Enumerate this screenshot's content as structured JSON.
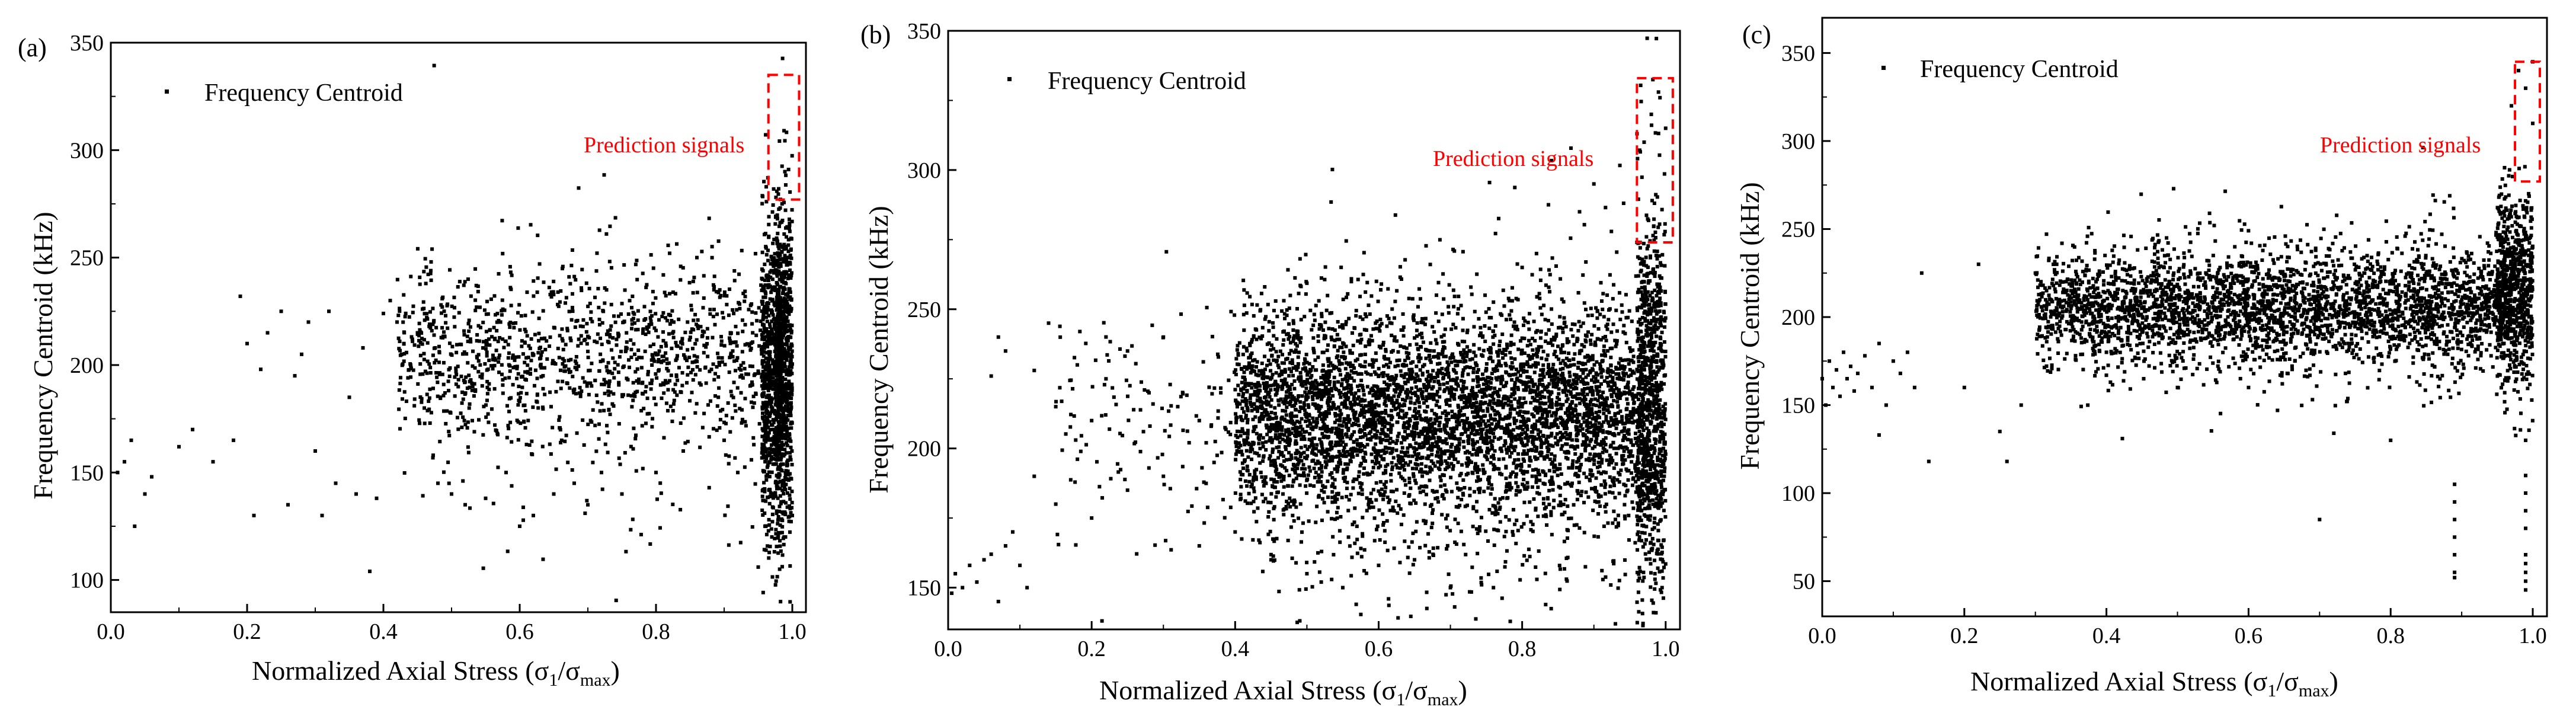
{
  "figure": {
    "legend_label": "Frequency Centroid",
    "annotation": "Prediction signals",
    "colors": {
      "points": "#000000",
      "annotation": "#ff0000",
      "axis": "#000000"
    }
  },
  "chart_data": [
    {
      "type": "scatter",
      "panel_label": "(a)",
      "title": "",
      "xlabel": "Normalized Axial Stress (σ1/σmax)",
      "ylabel": "Frequency Centroid (kHz)",
      "xlim": [
        0.0,
        1.02
      ],
      "ylim": [
        85,
        350
      ],
      "xticks": [
        0.0,
        0.2,
        0.4,
        0.6,
        0.8,
        1.0
      ],
      "xtick_labels": [
        "0.0",
        "0.2",
        "0.4",
        "0.6",
        "0.8",
        "1.0"
      ],
      "yticks": [
        100,
        150,
        200,
        250,
        300,
        350
      ],
      "ytick_labels": [
        "100",
        "150",
        "200",
        "250",
        "300",
        "350"
      ],
      "legend": {
        "entries": [
          "Frequency Centroid"
        ],
        "position": "top-left"
      },
      "annotation": {
        "text": "Prediction signals",
        "x_range": [
          0.965,
          1.01
        ],
        "y_range": [
          277,
          335
        ]
      },
      "series": [
        {
          "name": "Frequency Centroid",
          "points": [
            [
              0.01,
              150
            ],
            [
              0.02,
              155
            ],
            [
              0.03,
              165
            ],
            [
              0.035,
              125
            ],
            [
              0.05,
              140
            ],
            [
              0.06,
              148
            ],
            [
              0.1,
              162
            ],
            [
              0.12,
              170
            ],
            [
              0.15,
              155
            ],
            [
              0.18,
              165
            ],
            [
              0.19,
              232
            ],
            [
              0.2,
              210
            ],
            [
              0.21,
              130
            ],
            [
              0.22,
              198
            ],
            [
              0.23,
              215
            ],
            [
              0.25,
              225
            ],
            [
              0.26,
              135
            ],
            [
              0.27,
              195
            ],
            [
              0.28,
              205
            ],
            [
              0.29,
              220
            ],
            [
              0.3,
              160
            ],
            [
              0.31,
              130
            ],
            [
              0.32,
              225
            ],
            [
              0.33,
              145
            ],
            [
              0.35,
              185
            ],
            [
              0.36,
              140
            ],
            [
              0.37,
              208
            ],
            [
              0.38,
              104
            ],
            [
              0.39,
              138
            ],
            [
              0.4,
              224
            ],
            [
              0.41,
              230
            ],
            [
              0.42,
              220
            ],
            [
              0.43,
              210
            ],
            [
              0.44,
              200
            ],
            [
              0.45,
              215
            ],
            [
              0.46,
              180
            ],
            [
              0.47,
              248
            ],
            [
              0.48,
              145
            ],
            [
              0.5,
              140
            ],
            [
              0.52,
              135
            ],
            [
              0.55,
              138
            ],
            [
              0.58,
              150
            ],
            [
              0.6,
              125
            ],
            [
              0.62,
              130
            ],
            [
              0.65,
              140
            ],
            [
              0.68,
              145
            ],
            [
              0.7,
              135
            ],
            [
              0.72,
              150
            ],
            [
              0.75,
              140
            ],
            [
              0.8,
              150
            ],
            [
              0.82,
              252
            ],
            [
              0.84,
              160
            ],
            [
              0.86,
              250
            ],
            [
              0.9,
              165
            ],
            [
              0.92,
              150
            ],
            [
              0.95,
              106
            ],
            [
              0.96,
              125
            ],
            [
              0.97,
              120
            ],
            [
              0.98,
              282
            ],
            [
              0.985,
              275
            ],
            [
              0.99,
              120
            ],
            [
              1.0,
              130
            ]
          ],
          "clouds": [
            {
              "x": [
                0.42,
                0.96
              ],
              "y_center": 205,
              "y_spread": 20,
              "count": 1150
            },
            {
              "x": [
                0.45,
                0.95
              ],
              "y_center": 185,
              "y_spread": 45,
              "count": 160
            },
            {
              "x": [
                0.955,
                0.985
              ],
              "y_center": 195,
              "y_spread": 35,
              "count": 700
            },
            {
              "x": [
                0.975,
                1.0
              ],
              "y_center": 200,
              "y_spread": 38,
              "count": 700
            }
          ]
        }
      ]
    },
    {
      "type": "scatter",
      "panel_label": "(b)",
      "title": "",
      "xlabel": "Normalized Axial Stress (σ1/σmax)",
      "ylabel": "Frequency Centroid (kHz)",
      "xlim": [
        0.0,
        1.02
      ],
      "ylim": [
        135,
        350
      ],
      "xticks": [
        0.0,
        0.2,
        0.4,
        0.6,
        0.8,
        1.0
      ],
      "xtick_labels": [
        "0.0",
        "0.2",
        "0.4",
        "0.6",
        "0.8",
        "1.0"
      ],
      "yticks": [
        150,
        200,
        250,
        300,
        350
      ],
      "ytick_labels": [
        "150",
        "200",
        "250",
        "300",
        "350"
      ],
      "legend": {
        "entries": [
          "Frequency Centroid"
        ],
        "position": "top-left"
      },
      "annotation": {
        "text": "Prediction signals",
        "x_range": [
          0.96,
          1.01
        ],
        "y_range": [
          274,
          333
        ]
      },
      "series": [
        {
          "name": "Frequency Centroid",
          "points": [
            [
              0.005,
              148
            ],
            [
              0.01,
              155
            ],
            [
              0.02,
              150
            ],
            [
              0.03,
              158
            ],
            [
              0.04,
              152
            ],
            [
              0.05,
              160
            ],
            [
              0.06,
              162
            ],
            [
              0.07,
              145
            ],
            [
              0.08,
              165
            ],
            [
              0.09,
              170
            ],
            [
              0.1,
              158
            ],
            [
              0.11,
              150
            ],
            [
              0.06,
              226
            ],
            [
              0.07,
              240
            ],
            [
              0.08,
              235
            ],
            [
              0.12,
              228
            ],
            [
              0.14,
              245
            ],
            [
              0.15,
              215
            ],
            [
              0.18,
              230
            ],
            [
              0.2,
              210
            ],
            [
              0.22,
              225
            ],
            [
              0.25,
              235
            ],
            [
              0.28,
              220
            ],
            [
              0.3,
              240
            ],
            [
              0.32,
              215
            ],
            [
              0.35,
              210
            ],
            [
              0.38,
              220
            ],
            [
              0.12,
              190
            ],
            [
              0.15,
              180
            ],
            [
              0.2,
              175
            ],
            [
              0.25,
              185
            ],
            [
              0.3,
              190
            ],
            [
              0.35,
              165
            ],
            [
              0.4,
              170
            ],
            [
              0.45,
              160
            ],
            [
              0.5,
              155
            ],
            [
              0.52,
              152
            ],
            [
              0.55,
              150
            ],
            [
              0.6,
              158
            ],
            [
              0.65,
              160
            ],
            [
              0.7,
              150
            ],
            [
              0.76,
              150
            ],
            [
              0.8,
              265
            ],
            [
              0.82,
              270
            ],
            [
              0.88,
              285
            ],
            [
              0.9,
              295
            ],
            [
              0.93,
              137
            ],
            [
              0.97,
              310
            ],
            [
              0.98,
              320
            ],
            [
              0.99,
              328
            ],
            [
              1.0,
              315
            ],
            [
              0.985,
              155
            ],
            [
              0.995,
              150
            ]
          ],
          "clouds": [
            {
              "x": [
                0.4,
                0.97
              ],
              "y_center": 212,
              "y_spread": 18,
              "count": 4200
            },
            {
              "x": [
                0.45,
                0.95
              ],
              "y_center": 205,
              "y_spread": 35,
              "count": 700
            },
            {
              "x": [
                0.15,
                0.45
              ],
              "y_center": 210,
              "y_spread": 22,
              "count": 170
            },
            {
              "x": [
                0.96,
                1.0
              ],
              "y_center": 215,
              "y_spread": 35,
              "count": 900
            }
          ]
        }
      ]
    },
    {
      "type": "scatter",
      "panel_label": "(c)",
      "title": "",
      "xlabel": "Normalized Axial Stress (σ1/σmax)",
      "ylabel": "Frequency Centroid (kHz)",
      "xlim": [
        0.0,
        1.02
      ],
      "ylim": [
        30,
        370
      ],
      "xticks": [
        0.0,
        0.2,
        0.4,
        0.6,
        0.8,
        1.0
      ],
      "xtick_labels": [
        "0.0",
        "0.2",
        "0.4",
        "0.6",
        "0.8",
        "1.0"
      ],
      "yticks": [
        50,
        100,
        150,
        200,
        250,
        300,
        350
      ],
      "ytick_labels": [
        "50",
        "100",
        "150",
        "200",
        "250",
        "300",
        "350"
      ],
      "legend": {
        "entries": [
          "Frequency Centroid"
        ],
        "position": "top-left"
      },
      "annotation": {
        "text": "Prediction signals",
        "x_range": [
          0.975,
          1.01
        ],
        "y_range": [
          277,
          345
        ]
      },
      "series": [
        {
          "name": "Frequency Centroid",
          "points": [
            [
              0.0,
              165
            ],
            [
              0.005,
              150
            ],
            [
              0.01,
              175
            ],
            [
              0.015,
              160
            ],
            [
              0.02,
              170
            ],
            [
              0.025,
              155
            ],
            [
              0.03,
              180
            ],
            [
              0.035,
              165
            ],
            [
              0.04,
              172
            ],
            [
              0.045,
              158
            ],
            [
              0.05,
              168
            ],
            [
              0.06,
              178
            ],
            [
              0.07,
              160
            ],
            [
              0.08,
              185
            ],
            [
              0.09,
              150
            ],
            [
              0.1,
              175
            ],
            [
              0.11,
              168
            ],
            [
              0.12,
              180
            ],
            [
              0.13,
              160
            ],
            [
              0.14,
              225
            ],
            [
              0.15,
              118
            ],
            [
              0.08,
              133
            ],
            [
              0.2,
              160
            ],
            [
              0.22,
              230
            ],
            [
              0.25,
              135
            ],
            [
              0.26,
              118
            ],
            [
              0.28,
              150
            ],
            [
              0.3,
              225
            ],
            [
              0.33,
              230
            ],
            [
              0.35,
              215
            ],
            [
              0.4,
              180
            ],
            [
              0.5,
              160
            ],
            [
              0.6,
              160
            ],
            [
              0.7,
              85
            ],
            [
              0.72,
              134
            ],
            [
              0.8,
              130
            ],
            [
              0.89,
              55
            ],
            [
              0.89,
              65
            ],
            [
              0.89,
              75
            ],
            [
              0.89,
              85
            ],
            [
              0.89,
              95
            ],
            [
              0.89,
              105
            ],
            [
              0.89,
              52
            ],
            [
              0.99,
              50
            ],
            [
              0.99,
              55
            ],
            [
              0.99,
              60
            ],
            [
              0.99,
              65
            ],
            [
              0.99,
              80
            ],
            [
              0.99,
              90
            ],
            [
              0.99,
              100
            ],
            [
              0.99,
              110
            ],
            [
              0.99,
              130
            ],
            [
              0.99,
              45
            ],
            [
              0.97,
              320
            ],
            [
              0.98,
              340
            ],
            [
              0.99,
              330
            ],
            [
              1.0,
              310
            ],
            [
              1.0,
              345
            ]
          ],
          "clouds": [
            {
              "x": [
                0.3,
                0.97
              ],
              "y_center": 205,
              "y_spread": 15,
              "count": 2700
            },
            {
              "x": [
                0.35,
                0.95
              ],
              "y_center": 205,
              "y_spread": 28,
              "count": 500
            },
            {
              "x": [
                0.95,
                1.0
              ],
              "y_center": 215,
              "y_spread": 28,
              "count": 700
            }
          ]
        }
      ]
    }
  ]
}
